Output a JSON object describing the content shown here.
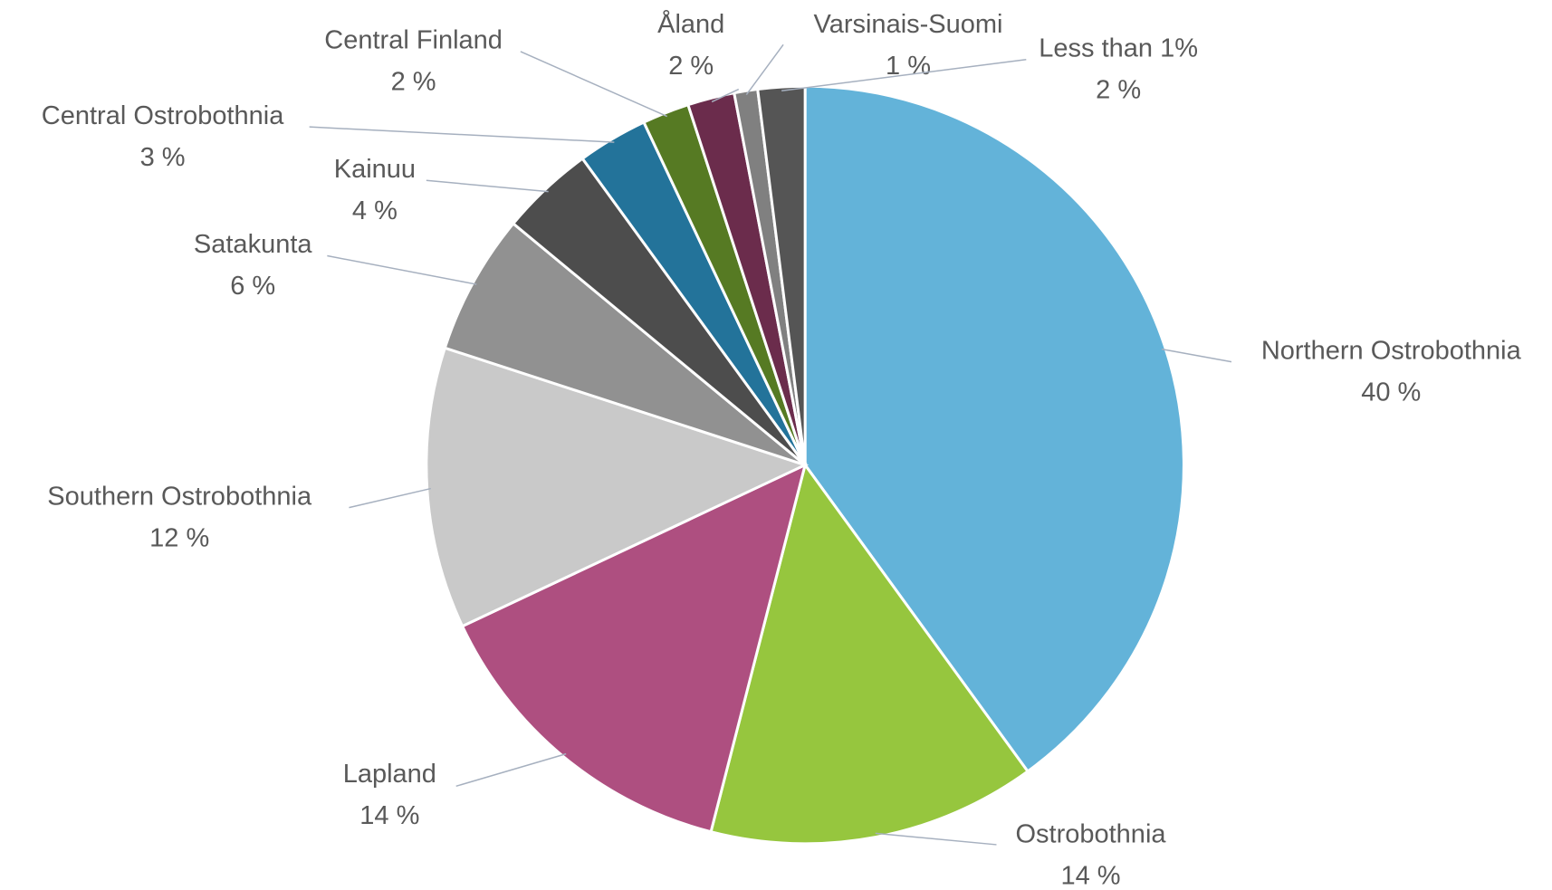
{
  "chart_data": {
    "type": "pie",
    "categories": [
      "Northern Ostrobothnia",
      "Ostrobothnia",
      "Lapland",
      "Southern Ostrobothnia",
      "Satakunta",
      "Kainuu",
      "Central Ostrobothnia",
      "Central Finland",
      "Åland",
      "Varsinais-Suomi",
      "Less than 1%"
    ],
    "values": [
      40,
      14,
      14,
      12,
      6,
      4,
      3,
      2,
      2,
      1,
      2
    ],
    "value_labels": [
      "40 %",
      "14 %",
      "14 %",
      "12 %",
      "6 %",
      "4 %",
      "3 %",
      "2 %",
      "2 %",
      "1 %",
      "2 %"
    ],
    "colors": [
      "#63b3d9",
      "#96c63e",
      "#ae4f80",
      "#c9c9c9",
      "#919191",
      "#4d4d4d",
      "#23739a",
      "#567a23",
      "#6b2c4c",
      "#808080",
      "#555555"
    ]
  }
}
